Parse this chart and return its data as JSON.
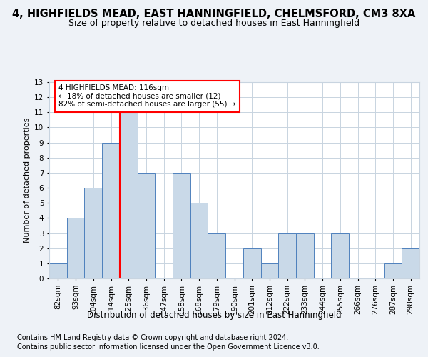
{
  "title1": "4, HIGHFIELDS MEAD, EAST HANNINGFIELD, CHELMSFORD, CM3 8XA",
  "title2": "Size of property relative to detached houses in East Hanningfield",
  "xlabel": "Distribution of detached houses by size in East Hanningfield",
  "ylabel": "Number of detached properties",
  "categories": [
    "82sqm",
    "93sqm",
    "104sqm",
    "114sqm",
    "125sqm",
    "136sqm",
    "147sqm",
    "158sqm",
    "168sqm",
    "179sqm",
    "190sqm",
    "201sqm",
    "212sqm",
    "222sqm",
    "233sqm",
    "244sqm",
    "255sqm",
    "266sqm",
    "276sqm",
    "287sqm",
    "298sqm"
  ],
  "values": [
    1,
    4,
    6,
    9,
    11,
    7,
    0,
    7,
    5,
    3,
    0,
    2,
    1,
    3,
    3,
    0,
    3,
    0,
    0,
    1,
    2
  ],
  "bar_color": "#c9d9e8",
  "bar_edge_color": "#4f81bd",
  "red_line_x": 3.5,
  "annotation_text": "4 HIGHFIELDS MEAD: 116sqm\n← 18% of detached houses are smaller (12)\n82% of semi-detached houses are larger (55) →",
  "annotation_box_color": "white",
  "annotation_box_edge_color": "red",
  "ylim": [
    0,
    13
  ],
  "yticks": [
    0,
    1,
    2,
    3,
    4,
    5,
    6,
    7,
    8,
    9,
    10,
    11,
    12,
    13
  ],
  "footer1": "Contains HM Land Registry data © Crown copyright and database right 2024.",
  "footer2": "Contains public sector information licensed under the Open Government Licence v3.0.",
  "background_color": "#eef2f7",
  "plot_background": "white",
  "grid_color": "#c8d4e0",
  "title1_fontsize": 10.5,
  "title2_fontsize": 9,
  "xlabel_fontsize": 8.5,
  "ylabel_fontsize": 8,
  "tick_fontsize": 7.5,
  "footer_fontsize": 7,
  "annotation_fontsize": 7.5
}
